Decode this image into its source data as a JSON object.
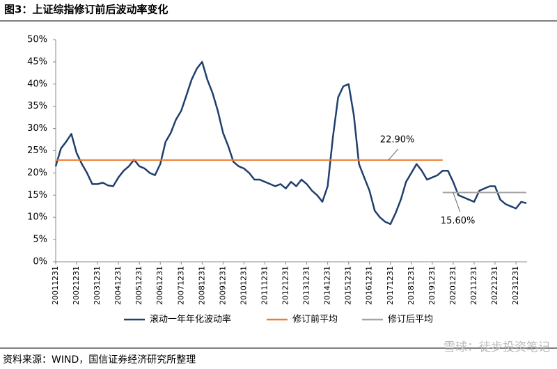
{
  "chart_data": {
    "type": "line",
    "title": "图3：上证综指修订前后波动率变化",
    "source": "资料来源：WIND，国信证券经济研究所整理",
    "watermark": "雪球：徒步投资笔记",
    "xlim": [
      "20011231",
      "20240630"
    ],
    "xticks": [
      "20011231",
      "20021231",
      "20031231",
      "20041231",
      "20051231",
      "20061231",
      "20071231",
      "20081231",
      "20091231",
      "20101231",
      "20111231",
      "20121231",
      "20131231",
      "20141231",
      "20151231",
      "20161231",
      "20171231",
      "20181231",
      "20191231",
      "20201231",
      "20211231",
      "20221231",
      "20231231"
    ],
    "ylim": [
      0,
      50
    ],
    "yticks": [
      {
        "value": 0,
        "label": "0%"
      },
      {
        "value": 5,
        "label": "5%"
      },
      {
        "value": 10,
        "label": "10%"
      },
      {
        "value": 15,
        "label": "15%"
      },
      {
        "value": 20,
        "label": "20%"
      },
      {
        "value": 25,
        "label": "25%"
      },
      {
        "value": 30,
        "label": "30%"
      },
      {
        "value": 35,
        "label": "35%"
      },
      {
        "value": 40,
        "label": "40%"
      },
      {
        "value": 45,
        "label": "45%"
      },
      {
        "value": 50,
        "label": "50%"
      }
    ],
    "x": [
      "20011231",
      "20020331",
      "20020630",
      "20020930",
      "20021231",
      "20030331",
      "20030630",
      "20030930",
      "20031231",
      "20040331",
      "20040630",
      "20040930",
      "20041231",
      "20050331",
      "20050630",
      "20050930",
      "20051231",
      "20060331",
      "20060630",
      "20060930",
      "20061231",
      "20070331",
      "20070630",
      "20070930",
      "20071231",
      "20080331",
      "20080630",
      "20080930",
      "20081231",
      "20090331",
      "20090630",
      "20090930",
      "20091231",
      "20100331",
      "20100630",
      "20100930",
      "20101231",
      "20110331",
      "20110630",
      "20110930",
      "20111231",
      "20120331",
      "20120630",
      "20120930",
      "20121231",
      "20130331",
      "20130630",
      "20130930",
      "20131231",
      "20140331",
      "20140630",
      "20140930",
      "20141231",
      "20150331",
      "20150630",
      "20150930",
      "20151231",
      "20160331",
      "20160630",
      "20160930",
      "20161231",
      "20170331",
      "20170630",
      "20170930",
      "20171231",
      "20180331",
      "20180630",
      "20180930",
      "20181231",
      "20190331",
      "20190630",
      "20190930",
      "20191231",
      "20200331",
      "20200630",
      "20200930",
      "20201231",
      "20210331",
      "20210630",
      "20210930",
      "20211231",
      "20220331",
      "20220630",
      "20220930",
      "20221231",
      "20230331",
      "20230630",
      "20230930",
      "20231231",
      "20240331",
      "20240630"
    ],
    "series": [
      {
        "name": "滚动一年年化波动率",
        "color": "#1f3f6e",
        "values": [
          21.5,
          25.5,
          27,
          28.8,
          24.5,
          22,
          20,
          17.5,
          17.5,
          17.8,
          17.2,
          17,
          19,
          20.5,
          21.5,
          23,
          21.5,
          21,
          20,
          19.5,
          22,
          27,
          29,
          32,
          34,
          37.5,
          41,
          43.5,
          45,
          41,
          38,
          34,
          29,
          26,
          22.5,
          21.5,
          21,
          20,
          18.5,
          18.5,
          18,
          17.5,
          17,
          17.5,
          16.5,
          18,
          17,
          18.5,
          17.5,
          16,
          15,
          13.5,
          17,
          28,
          37,
          39.5,
          40,
          33,
          22,
          19,
          16,
          11.5,
          10,
          9,
          8.5,
          11,
          14,
          18,
          20,
          22,
          20.5,
          18.5,
          19,
          19.5,
          20.5,
          20.5,
          18,
          15,
          14.5,
          14,
          13.5,
          16,
          16.5,
          17,
          17,
          14,
          13,
          12.5,
          12,
          13.5,
          13.2
        ]
      }
    ],
    "lines": [
      {
        "name": "修订前平均",
        "color": "#ed7d31",
        "value": 22.9,
        "value_label": "22.90%",
        "x": [
          "20011231",
          "20200630"
        ]
      },
      {
        "name": "修订后平均",
        "color": "#a5a5a5",
        "value": 15.6,
        "value_label": "15.60%",
        "x": [
          "20200630",
          "20240630"
        ]
      }
    ]
  }
}
